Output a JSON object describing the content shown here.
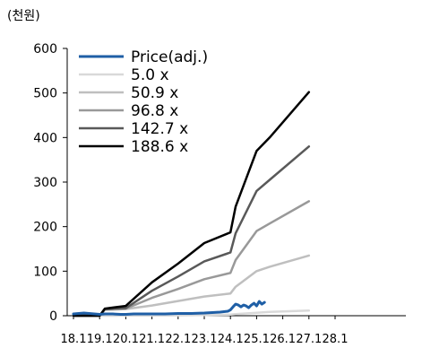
{
  "chart_data": {
    "type": "line",
    "unit_label": "(천원)",
    "xlabel": "",
    "ylabel": "",
    "x_tick_labels": [
      "18.1",
      "19.1",
      "20.1",
      "21.1",
      "22.1",
      "23.1",
      "24.1",
      "25.1",
      "26.1",
      "27.1",
      "28.1"
    ],
    "ylim": [
      0,
      600
    ],
    "y_ticks": [
      0,
      100,
      200,
      300,
      400,
      500,
      600
    ],
    "grid": false,
    "legend_position": "top-left",
    "series": [
      {
        "name": "Price(adj.)",
        "color": "#1f5fa6",
        "x": [
          18.0,
          18.2,
          18.4,
          18.6,
          18.8,
          19.0,
          19.2,
          19.5,
          19.8,
          20.0,
          20.3,
          20.6,
          21.0,
          21.5,
          22.0,
          22.5,
          23.0,
          23.3,
          23.6,
          23.9,
          24.0,
          24.1,
          24.2,
          24.3,
          24.4,
          24.5,
          24.6,
          24.7,
          24.8,
          24.9,
          25.0,
          25.1,
          25.2,
          25.3
        ],
        "values": [
          4,
          5,
          6,
          5,
          4,
          3,
          4,
          4,
          3,
          3,
          4,
          4,
          4,
          4,
          5,
          5,
          6,
          7,
          8,
          10,
          13,
          20,
          26,
          24,
          20,
          24,
          22,
          18,
          24,
          28,
          22,
          32,
          26,
          30
        ]
      },
      {
        "name": "5.0 x",
        "color": "#d9d9d9",
        "x": [
          18.0,
          19.0,
          19.2,
          20.0,
          21.0,
          22.0,
          23.0,
          24.0,
          24.2,
          25.0,
          25.5,
          27.0
        ],
        "values": [
          0,
          0,
          0,
          0.2,
          0.5,
          0.8,
          1.4,
          2.5,
          3.5,
          6.5,
          8.5,
          11.5
        ]
      },
      {
        "name": "50.9 x",
        "color": "#bfbfbf",
        "x": [
          18.0,
          19.0,
          19.2,
          20.0,
          21.0,
          22.0,
          23.0,
          24.0,
          24.2,
          25.0,
          25.5,
          27.0
        ],
        "values": [
          0,
          0,
          13,
          15,
          23,
          33,
          43,
          50,
          65,
          100,
          110,
          135
        ]
      },
      {
        "name": "96.8 x",
        "color": "#999999",
        "x": [
          18.0,
          19.0,
          19.2,
          20.0,
          21.0,
          22.0,
          23.0,
          24.0,
          24.2,
          25.0,
          25.5,
          27.0
        ],
        "values": [
          0,
          0,
          14,
          16,
          40,
          60,
          82,
          96,
          125,
          190,
          207,
          257
        ]
      },
      {
        "name": "142.7 x",
        "color": "#595959",
        "x": [
          18.0,
          19.0,
          19.2,
          20.0,
          21.0,
          22.0,
          23.0,
          24.0,
          24.2,
          25.0,
          25.5,
          27.0
        ],
        "values": [
          0,
          0,
          15,
          17,
          56,
          88,
          122,
          142,
          185,
          280,
          305,
          380
        ]
      },
      {
        "name": "188.6 x",
        "color": "#000000",
        "x": [
          18.0,
          19.0,
          19.2,
          20.0,
          21.0,
          22.0,
          23.0,
          24.0,
          24.2,
          25.0,
          25.5,
          27.0
        ],
        "values": [
          0,
          0,
          16,
          22,
          75,
          117,
          163,
          187,
          245,
          370,
          400,
          502
        ]
      }
    ]
  }
}
